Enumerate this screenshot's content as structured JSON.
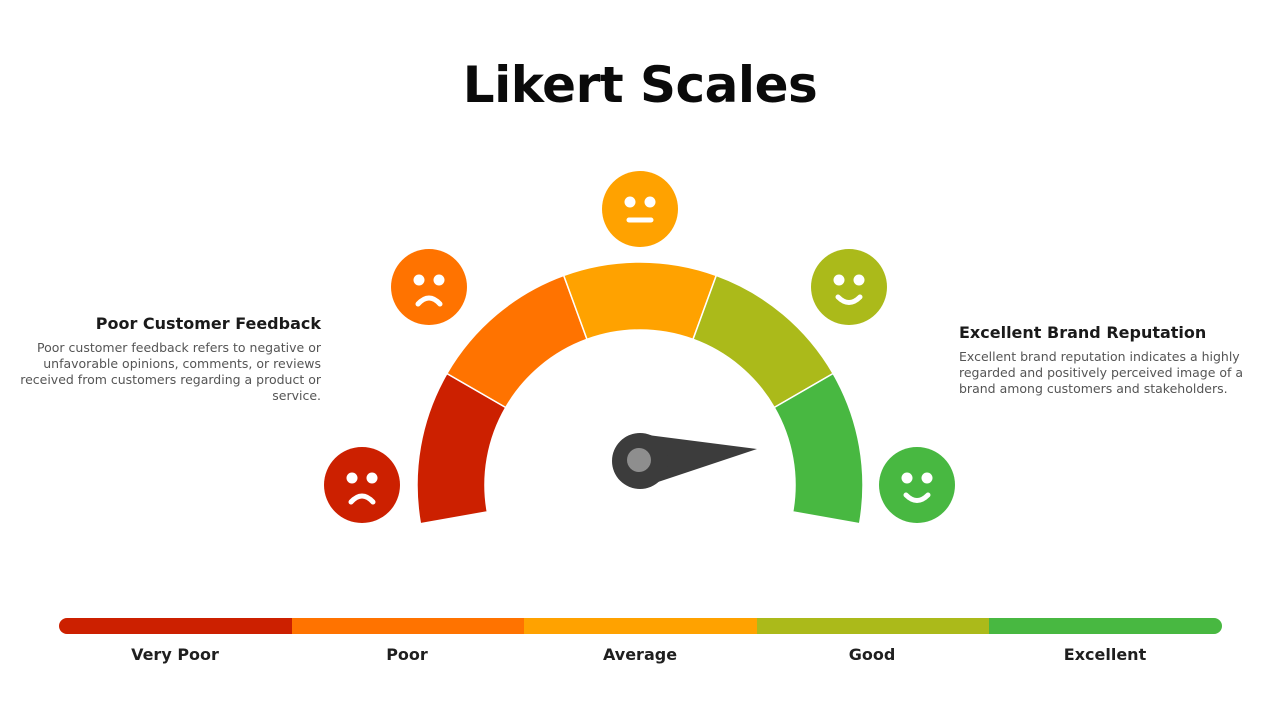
{
  "title": "Likert Scales",
  "levels": [
    {
      "label": "Very Poor",
      "color": "#cc2000",
      "face": "sad-face-icon"
    },
    {
      "label": "Poor",
      "color": "#ff7300",
      "face": "sad-face-icon"
    },
    {
      "label": "Average",
      "color": "#ffa200",
      "face": "neutral-face-icon"
    },
    {
      "label": "Good",
      "color": "#abba1a",
      "face": "happy-face-icon"
    },
    {
      "label": "Excellent",
      "color": "#48b841",
      "face": "happy-face-icon"
    }
  ],
  "left": {
    "heading": "Poor Customer Feedback",
    "body": "Poor customer feedback refers to negative or unfavorable opinions, comments, or reviews received from customers regarding a product or service."
  },
  "right": {
    "heading": "Excellent Brand Reputation",
    "body": "Excellent brand reputation indicates a highly regarded and positively perceived image of a brand among customers and stakeholders."
  },
  "needle_color": "#3c3c3c",
  "needle_hub_color": "#8e8e8e"
}
